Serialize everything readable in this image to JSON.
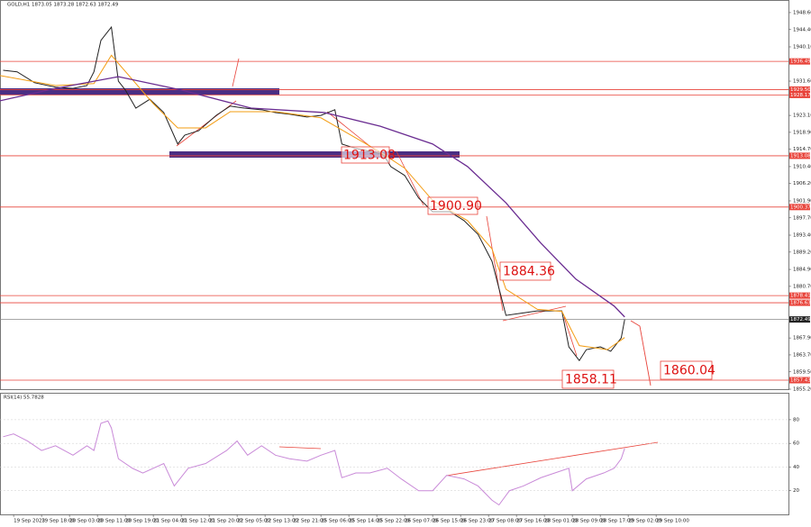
{
  "chart_data": [
    {
      "type": "line",
      "title": "GOLD,H1  1873.05 1873.28 1872.63 1872.49",
      "xlim": [
        -3.9,
        221.9
      ],
      "ylim": [
        1855.2,
        1950.6
      ],
      "yticks": [
        {
          "value": 1948.6,
          "label": "1948.60"
        },
        {
          "value": 1944.4,
          "label": "1944.40"
        },
        {
          "value": 1940.1,
          "label": "1940.10"
        },
        {
          "value": 1931.6,
          "label": "1931.60"
        },
        {
          "value": 1923.1,
          "label": "1923.10"
        },
        {
          "value": 1918.9,
          "label": "1918.90"
        },
        {
          "value": 1914.7,
          "label": "1914.70"
        },
        {
          "value": 1910.4,
          "label": "1910.40"
        },
        {
          "value": 1906.2,
          "label": "1906.20"
        },
        {
          "value": 1901.9,
          "label": "1901.90"
        },
        {
          "value": 1897.7,
          "label": "1897.70"
        },
        {
          "value": 1893.4,
          "label": "1893.40"
        },
        {
          "value": 1889.2,
          "label": "1889.20"
        },
        {
          "value": 1884.9,
          "label": "1884.90"
        },
        {
          "value": 1880.7,
          "label": "1880.70"
        },
        {
          "value": 1867.9,
          "label": "1867.90"
        },
        {
          "value": 1863.7,
          "label": "1863.70"
        },
        {
          "value": 1859.5,
          "label": "1859.50"
        },
        {
          "value": 1855.2,
          "label": "1855.20"
        }
      ],
      "xticks": [
        {
          "value": 0,
          "label": "19 Sep 2023"
        },
        {
          "value": 8,
          "label": "19 Sep 18:00"
        },
        {
          "value": 16,
          "label": "20 Sep 03:00"
        },
        {
          "value": 24,
          "label": "20 Sep 11:00"
        },
        {
          "value": 32,
          "label": "20 Sep 19:00"
        },
        {
          "value": 40,
          "label": "21 Sep 04:00"
        },
        {
          "value": 48,
          "label": "21 Sep 12:00"
        },
        {
          "value": 56,
          "label": "21 Sep 20:00"
        },
        {
          "value": 64,
          "label": "22 Sep 05:00"
        },
        {
          "value": 72,
          "label": "22 Sep 13:00"
        },
        {
          "value": 80,
          "label": "22 Sep 21:00"
        },
        {
          "value": 88,
          "label": "25 Sep 06:00"
        },
        {
          "value": 96,
          "label": "25 Sep 14:00"
        },
        {
          "value": 104,
          "label": "25 Sep 22:00"
        },
        {
          "value": 112,
          "label": "26 Sep 07:00"
        },
        {
          "value": 120,
          "label": "26 Sep 15:00"
        },
        {
          "value": 128,
          "label": "26 Sep 23:00"
        },
        {
          "value": 136,
          "label": "27 Sep 08:00"
        },
        {
          "value": 144,
          "label": "27 Sep 16:00"
        },
        {
          "value": 152,
          "label": "28 Sep 01:00"
        },
        {
          "value": 160,
          "label": "28 Sep 09:00"
        },
        {
          "value": 168,
          "label": "28 Sep 17:00"
        },
        {
          "value": 176,
          "label": "29 Sep 02:00"
        },
        {
          "value": 184,
          "label": "29 Sep 10:00"
        }
      ],
      "levels": [
        {
          "value": 1936.49,
          "label": "1936.49"
        },
        {
          "value": 1929.5,
          "label": "1929.50"
        },
        {
          "value": 1928.17,
          "label": "1928.17"
        },
        {
          "value": 1913.08,
          "label": "1913.08"
        },
        {
          "value": 1900.37,
          "label": "1900.37"
        },
        {
          "value": 1878.41,
          "label": "1878.41"
        },
        {
          "value": 1876.63,
          "label": "1876.63"
        },
        {
          "value": 1857.43,
          "label": "1857.43"
        }
      ],
      "level_color": "#e8433a",
      "last_price": {
        "value": 1872.49,
        "label": "1872.49"
      },
      "annotations": [
        "1913.08",
        "1900.90",
        "1884.36",
        "1858.11",
        "1860.04"
      ],
      "series": [
        {
          "color": "#222222",
          "width": 1,
          "x": [
            -3,
            1,
            6,
            12,
            17,
            21,
            23,
            25,
            27,
            28,
            30,
            32,
            35,
            39,
            43,
            47,
            49,
            53,
            58,
            62,
            66,
            71,
            75,
            79,
            84,
            88,
            92,
            94,
            98,
            102,
            106,
            108,
            112,
            116,
            120,
            125,
            129,
            133,
            137,
            139,
            141,
            145,
            150,
            154,
            157,
            159,
            162,
            164,
            168,
            171,
            174,
            175
          ],
          "values": [
            1934.3,
            1933.9,
            1931.2,
            1930.1,
            1929.8,
            1930.5,
            1933.9,
            1941.7,
            1943.9,
            1945.0,
            1931.6,
            1929.4,
            1924.9,
            1927.1,
            1923.8,
            1916.0,
            1918.2,
            1919.3,
            1923.1,
            1925.4,
            1924.9,
            1924.5,
            1923.8,
            1923.4,
            1922.7,
            1923.1,
            1924.5,
            1916.0,
            1914.9,
            1914.2,
            1913.3,
            1910.4,
            1908.2,
            1902.6,
            1899.2,
            1899.2,
            1897.0,
            1893.6,
            1886.9,
            1880.2,
            1873.5,
            1874.0,
            1874.6,
            1874.6,
            1874.6,
            1865.7,
            1862.3,
            1865.0,
            1865.7,
            1864.6,
            1867.9,
            1872.5
          ]
        },
        {
          "color": "#f39c12",
          "width": 1,
          "x": [
            -4,
            12,
            23,
            28,
            32,
            40,
            47,
            55,
            62,
            75,
            88,
            95,
            105,
            112,
            120,
            130,
            137,
            141,
            150,
            157,
            162,
            170,
            175
          ],
          "values": [
            1933,
            1930.5,
            1931,
            1938,
            1934,
            1926,
            1920,
            1920,
            1924,
            1924,
            1922.5,
            1919,
            1914,
            1910,
            1902,
            1897,
            1890,
            1880,
            1875,
            1874.5,
            1866,
            1865,
            1868
          ]
        },
        {
          "color": "#6a2c91",
          "width": 1.3,
          "x": [
            -4,
            12,
            30,
            48,
            68,
            89,
            105,
            120,
            130,
            141,
            151,
            161,
            172,
            175
          ],
          "values": [
            1926.7,
            1929.8,
            1932.7,
            1929.4,
            1924.9,
            1923.8,
            1920.4,
            1916.0,
            1910.4,
            1901.4,
            1891.4,
            1882.5,
            1875.8,
            1873.1
          ]
        }
      ]
    },
    {
      "type": "line",
      "title": "RSI(14) 55.7828",
      "xlim": [
        -3.9,
        221.9
      ],
      "ylim": [
        0,
        102
      ],
      "yticks": [
        20,
        40,
        60,
        80
      ],
      "series": [
        {
          "color": "#c98ad8",
          "width": 1,
          "x": [
            -3,
            0,
            4,
            8,
            12,
            17,
            21,
            23,
            25,
            27,
            28,
            30,
            34,
            37,
            43,
            46,
            50,
            55,
            61,
            64,
            67,
            71,
            75,
            79,
            84,
            88,
            92,
            94,
            98,
            102,
            107,
            111,
            116,
            120,
            124,
            129,
            133,
            137,
            139,
            142,
            146,
            151,
            155,
            159,
            160,
            164,
            169,
            172,
            174,
            175
          ],
          "values": [
            65.6,
            68,
            62,
            54,
            58,
            50,
            58,
            54,
            77,
            79,
            73,
            47,
            39,
            35,
            43,
            24,
            39,
            43,
            54,
            62,
            50,
            58,
            50,
            47,
            45,
            50,
            54,
            31,
            35,
            35,
            39,
            30,
            20,
            20,
            33,
            30,
            24,
            12,
            8,
            20,
            24,
            31,
            35,
            39,
            20,
            30,
            35,
            39,
            47,
            55.78
          ]
        }
      ]
    }
  ]
}
